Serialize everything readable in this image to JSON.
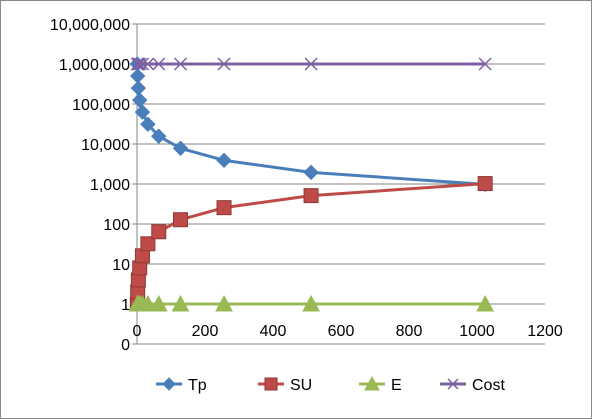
{
  "chart_data": {
    "type": "scatter",
    "x_scale": "linear",
    "y_scale": "log",
    "xlim": [
      0,
      1200
    ],
    "ylim": [
      0.1,
      10000000
    ],
    "x_ticks": [
      0,
      200,
      400,
      600,
      800,
      1000,
      1200
    ],
    "x_tick_labels": [
      "0",
      "200",
      "400",
      "600",
      "800",
      "1000",
      "1200"
    ],
    "y_ticks": [
      0.1,
      1,
      10,
      100,
      1000,
      10000,
      100000,
      1000000,
      10000000
    ],
    "y_tick_labels": [
      "0",
      "1",
      "10",
      "100",
      "1,000",
      "10,000",
      "100,000",
      "1,000,000",
      "10,000,000"
    ],
    "grid": "horizontal",
    "legend_position": "bottom",
    "series": [
      {
        "name": "Tp",
        "color": "#4a7ebb",
        "marker": "diamond",
        "x": [
          1,
          2,
          4,
          8,
          16,
          32,
          64,
          128,
          256,
          512,
          1024
        ],
        "y": [
          1000000,
          500000,
          250000,
          125000,
          62500,
          31250,
          15625,
          7812.5,
          3906.25,
          1953.125,
          976.5625
        ]
      },
      {
        "name": "SU",
        "color": "#be4b48",
        "marker": "square",
        "x": [
          1,
          2,
          4,
          8,
          16,
          32,
          64,
          128,
          256,
          512,
          1024
        ],
        "y": [
          1,
          2,
          4,
          8,
          16,
          32,
          64,
          128,
          256,
          512,
          1024
        ]
      },
      {
        "name": "E",
        "color": "#98b954",
        "marker": "triangle",
        "x": [
          1,
          2,
          4,
          8,
          16,
          32,
          64,
          128,
          256,
          512,
          1024
        ],
        "y": [
          1,
          1,
          1,
          1,
          1,
          1,
          1,
          1,
          1,
          1,
          1
        ]
      },
      {
        "name": "Cost",
        "color": "#7d60a0",
        "marker": "x",
        "x": [
          1,
          2,
          4,
          8,
          16,
          32,
          64,
          128,
          256,
          512,
          1024
        ],
        "y": [
          1000000,
          1000000,
          1000000,
          1000000,
          1000000,
          1000000,
          1000000,
          1000000,
          1000000,
          1000000,
          1000000
        ]
      }
    ]
  }
}
